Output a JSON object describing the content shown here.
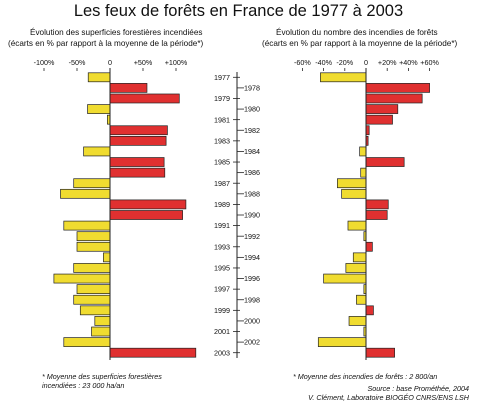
{
  "title": "Les feux de forêts en France de 1977 à 2003",
  "left_panel": {
    "subtitle_line1": "Évolution des superficies forestières incendiées",
    "subtitle_line2": "(écarts en % par rapport à la moyenne de la période*)",
    "footnote_line1": "* Moyenne des superficies forestières",
    "footnote_line2": "incendiées : 23 000 ha/an"
  },
  "right_panel": {
    "subtitle_line1": "Évolution du nombre des incendies de forêts",
    "subtitle_line2": "(écarts en % par rapport à la moyenne de la période*)",
    "footnote": "* Moyenne des incendies de forêts : 2 800/an"
  },
  "source": "Source : base Prométhée, 2004",
  "credit": "V. Clément, Laboratoire BIOGÉO CNRS/ENS LSH",
  "colors": {
    "positive": "#e03030",
    "negative": "#f0dc30",
    "outline": "#222222"
  },
  "chart_data": [
    {
      "type": "bar",
      "orientation": "horizontal",
      "categories": [
        "1977",
        "1978",
        "1979",
        "1980",
        "1981",
        "1982",
        "1983",
        "1984",
        "1985",
        "1986",
        "1987",
        "1988",
        "1989",
        "1990",
        "1991",
        "1992",
        "1993",
        "1994",
        "1995",
        "1996",
        "1997",
        "1998",
        "1999",
        "2000",
        "2001",
        "2002",
        "2003"
      ],
      "values": [
        -33,
        56,
        105,
        -34,
        -4,
        87,
        85,
        -40,
        82,
        83,
        -55,
        -75,
        115,
        110,
        -70,
        -50,
        -50,
        -10,
        -55,
        -85,
        -50,
        -55,
        -45,
        -23,
        -28,
        -70,
        130
      ],
      "xlim": [
        -100,
        130
      ],
      "ticks": [
        "-100%",
        "-50%",
        "0",
        "+50%",
        "+100%"
      ],
      "tick_values": [
        -100,
        -50,
        0,
        50,
        100
      ]
    },
    {
      "type": "bar",
      "orientation": "horizontal",
      "categories": [
        "1977",
        "1978",
        "1979",
        "1980",
        "1981",
        "1982",
        "1983",
        "1984",
        "1985",
        "1986",
        "1987",
        "1988",
        "1989",
        "1990",
        "1991",
        "1992",
        "1993",
        "1994",
        "1995",
        "1996",
        "1997",
        "1998",
        "1999",
        "2000",
        "2001",
        "2002",
        "2003"
      ],
      "values": [
        -43,
        60,
        53,
        30,
        25,
        3,
        2,
        -6,
        36,
        -5,
        -27,
        -23,
        21,
        20,
        -17,
        -2,
        6,
        -12,
        -19,
        -40,
        -2,
        -9,
        7,
        -16,
        -2,
        -45,
        27
      ],
      "xlim": [
        -62,
        62
      ],
      "ticks": [
        "-60%",
        "-40%",
        "-20%",
        "0",
        "+20%",
        "+40%",
        "+60%"
      ],
      "tick_values": [
        -60,
        -40,
        -20,
        0,
        20,
        40,
        60
      ]
    }
  ]
}
